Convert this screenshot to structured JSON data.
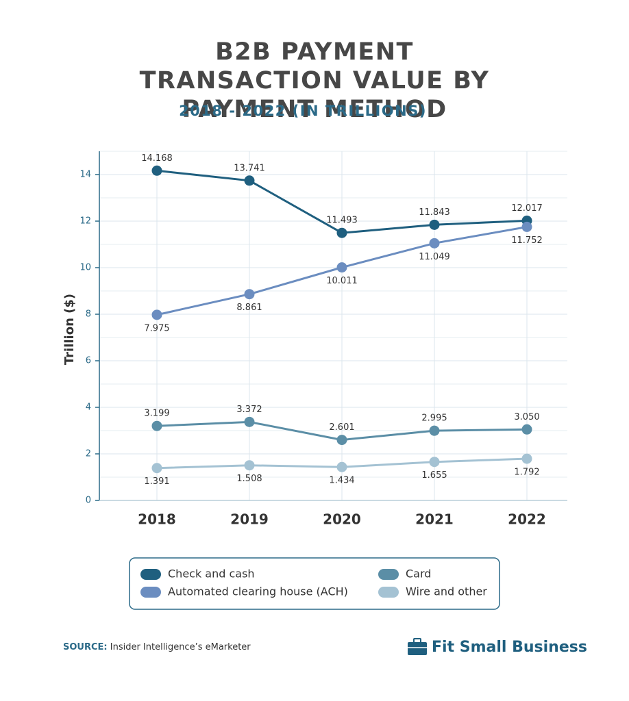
{
  "chart_data": {
    "type": "line",
    "title": "B2B PAYMENT TRANSACTION VALUE BY PAYMENT METHOD",
    "subtitle": "2018 - 2022 (IN TRILLIONS)",
    "y_label": "Trillion ($)",
    "categories": [
      "2018",
      "2019",
      "2020",
      "2021",
      "2022"
    ],
    "series": [
      {
        "name": "Check and cash",
        "color": "#1f5f7f",
        "values": [
          14.168,
          13.741,
          11.493,
          11.843,
          12.017
        ],
        "value_labels": [
          "14.168",
          "13.741",
          "11.493",
          "11.843",
          "12.017"
        ],
        "label_position": "above"
      },
      {
        "name": "Automated clearing house (ACH)",
        "color": "#6b8dc0",
        "values": [
          7.975,
          8.861,
          10.011,
          11.049,
          11.752
        ],
        "value_labels": [
          "7.975",
          "8.861",
          "10.011",
          "11.049",
          "11.752"
        ],
        "label_position": "below"
      },
      {
        "name": "Card",
        "color": "#5b8ea6",
        "values": [
          3.199,
          3.372,
          2.601,
          2.995,
          3.05
        ],
        "value_labels": [
          "3.199",
          "3.372",
          "2.601",
          "2.995",
          "3.050"
        ],
        "label_position": "above"
      },
      {
        "name": "Wire and other",
        "color": "#a4c2d3",
        "values": [
          1.391,
          1.508,
          1.434,
          1.655,
          1.792
        ],
        "value_labels": [
          "1.391",
          "1.508",
          "1.434",
          "1.655",
          "1.792"
        ],
        "label_position": "below"
      }
    ],
    "ylim": [
      0,
      15
    ],
    "yticks": [
      0,
      2,
      4,
      6,
      8,
      10,
      12,
      14
    ],
    "y_minor_ticks": [
      1,
      3,
      5,
      7,
      9,
      11,
      13,
      15
    ],
    "grid": true,
    "source_label": "SOURCE:",
    "source": "Insider Intelligence’s eMarketer",
    "brand": "Fit Small Business"
  }
}
